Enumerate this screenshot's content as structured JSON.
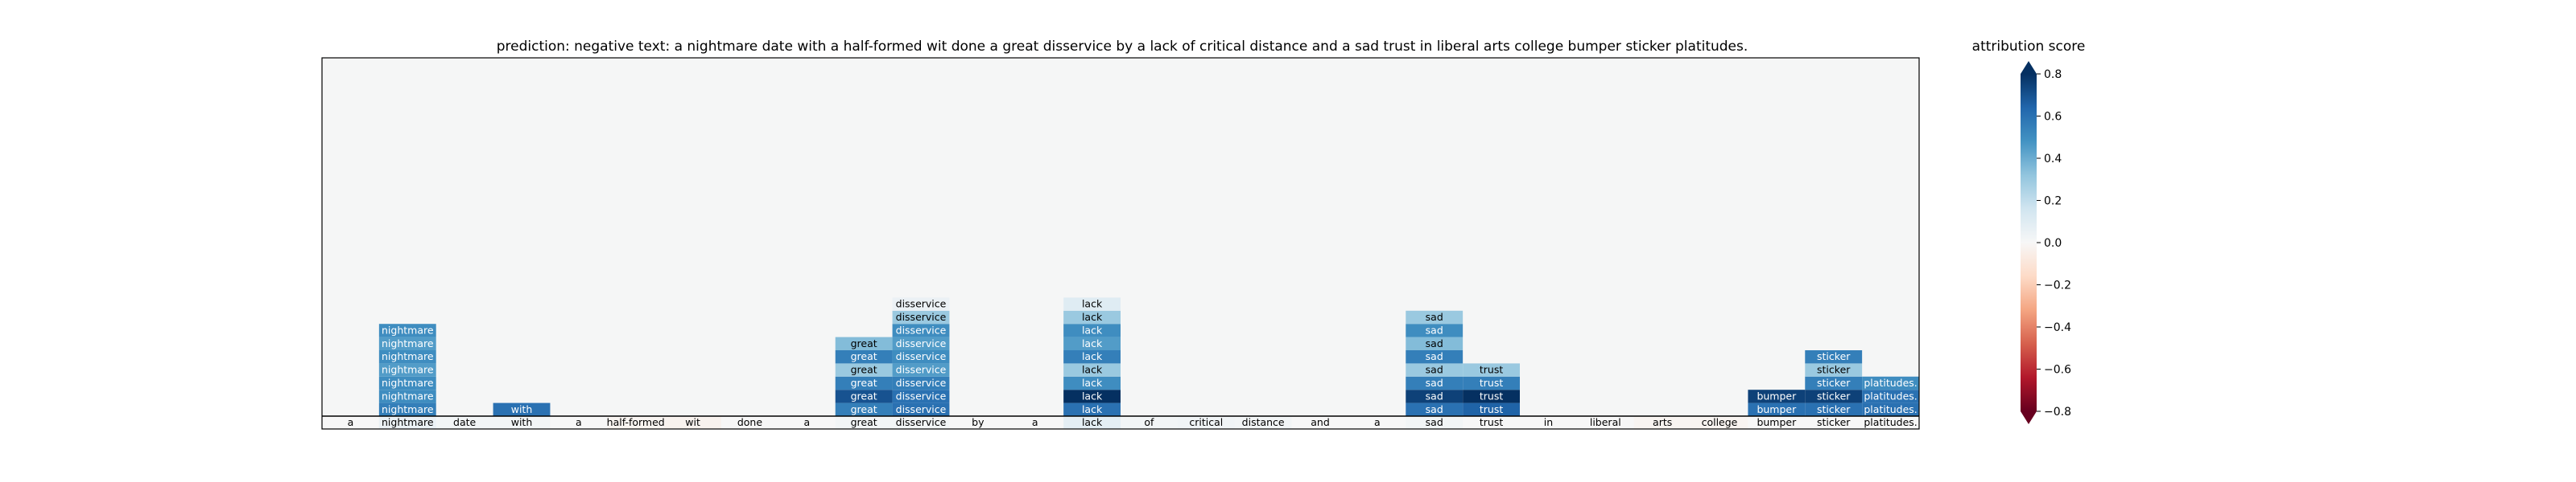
{
  "chart_data": {
    "type": "heatmap",
    "title": "prediction:  negative     text:  a nightmare date with a half-formed wit done a great disservice by a lack of critical distance and a sad trust in liberal arts college bumper sticker platitudes.",
    "tokens": [
      "a",
      "nightmare",
      "date",
      "with",
      "a",
      "half-formed",
      "wit",
      "done",
      "a",
      "great",
      "disservice",
      "by",
      "a",
      "lack",
      "of",
      "critical",
      "distance",
      "and",
      "a",
      "sad",
      "trust",
      "in",
      "liberal",
      "arts",
      "college",
      "bumper",
      "sticker",
      "platitudes."
    ],
    "base_row_scores": [
      0.0,
      0.05,
      0.02,
      0.02,
      0.0,
      -0.02,
      -0.03,
      0.0,
      0.0,
      0.02,
      0.02,
      0.0,
      0.0,
      0.08,
      0.02,
      0.03,
      0.02,
      0.0,
      0.0,
      0.02,
      0.0,
      0.0,
      0.0,
      -0.02,
      -0.02,
      0.0,
      0.0,
      0.0
    ],
    "cells": [
      {
        "layer": 1,
        "token": 1,
        "score": 0.55
      },
      {
        "layer": 1,
        "token": 3,
        "score": 0.6
      },
      {
        "layer": 1,
        "token": 9,
        "score": 0.55
      },
      {
        "layer": 1,
        "token": 10,
        "score": 0.6
      },
      {
        "layer": 1,
        "token": 13,
        "score": 0.6
      },
      {
        "layer": 1,
        "token": 19,
        "score": 0.6
      },
      {
        "layer": 1,
        "token": 20,
        "score": 0.65
      },
      {
        "layer": 1,
        "token": 25,
        "score": 0.6
      },
      {
        "layer": 1,
        "token": 26,
        "score": 0.6
      },
      {
        "layer": 1,
        "token": 27,
        "score": 0.6
      },
      {
        "layer": 2,
        "token": 1,
        "score": 0.5
      },
      {
        "layer": 2,
        "token": 9,
        "score": 0.7
      },
      {
        "layer": 2,
        "token": 10,
        "score": 0.6
      },
      {
        "layer": 2,
        "token": 13,
        "score": 0.85
      },
      {
        "layer": 2,
        "token": 19,
        "score": 0.75
      },
      {
        "layer": 2,
        "token": 20,
        "score": 0.8
      },
      {
        "layer": 2,
        "token": 25,
        "score": 0.75
      },
      {
        "layer": 2,
        "token": 26,
        "score": 0.75
      },
      {
        "layer": 2,
        "token": 27,
        "score": 0.6
      },
      {
        "layer": 3,
        "token": 1,
        "score": 0.5
      },
      {
        "layer": 3,
        "token": 9,
        "score": 0.55
      },
      {
        "layer": 3,
        "token": 10,
        "score": 0.55
      },
      {
        "layer": 3,
        "token": 13,
        "score": 0.5
      },
      {
        "layer": 3,
        "token": 19,
        "score": 0.55
      },
      {
        "layer": 3,
        "token": 20,
        "score": 0.55
      },
      {
        "layer": 3,
        "token": 26,
        "score": 0.55
      },
      {
        "layer": 3,
        "token": 27,
        "score": 0.5
      },
      {
        "layer": 4,
        "token": 1,
        "score": 0.45
      },
      {
        "layer": 4,
        "token": 9,
        "score": 0.3
      },
      {
        "layer": 4,
        "token": 10,
        "score": 0.45
      },
      {
        "layer": 4,
        "token": 13,
        "score": 0.3
      },
      {
        "layer": 4,
        "token": 19,
        "score": 0.3
      },
      {
        "layer": 4,
        "token": 20,
        "score": 0.3
      },
      {
        "layer": 4,
        "token": 26,
        "score": 0.3
      },
      {
        "layer": 5,
        "token": 1,
        "score": 0.5
      },
      {
        "layer": 5,
        "token": 9,
        "score": 0.55
      },
      {
        "layer": 5,
        "token": 10,
        "score": 0.5
      },
      {
        "layer": 5,
        "token": 13,
        "score": 0.55
      },
      {
        "layer": 5,
        "token": 19,
        "score": 0.55
      },
      {
        "layer": 5,
        "token": 26,
        "score": 0.55
      },
      {
        "layer": 6,
        "token": 1,
        "score": 0.45
      },
      {
        "layer": 6,
        "token": 9,
        "score": 0.35
      },
      {
        "layer": 6,
        "token": 10,
        "score": 0.45
      },
      {
        "layer": 6,
        "token": 13,
        "score": 0.45
      },
      {
        "layer": 6,
        "token": 19,
        "score": 0.35
      },
      {
        "layer": 7,
        "token": 1,
        "score": 0.5
      },
      {
        "layer": 7,
        "token": 10,
        "score": 0.5
      },
      {
        "layer": 7,
        "token": 13,
        "score": 0.5
      },
      {
        "layer": 7,
        "token": 19,
        "score": 0.5
      },
      {
        "layer": 8,
        "token": 10,
        "score": 0.3
      },
      {
        "layer": 8,
        "token": 13,
        "score": 0.3
      },
      {
        "layer": 8,
        "token": 19,
        "score": 0.3
      },
      {
        "layer": 9,
        "token": 10,
        "score": 0.05
      },
      {
        "layer": 9,
        "token": 13,
        "score": 0.1
      }
    ],
    "colorbar": {
      "label": "attribution score",
      "vmin": -0.8,
      "vmax": 0.8,
      "ticks": [
        0.8,
        0.6,
        0.4,
        0.2,
        0.0,
        -0.2,
        -0.4,
        -0.6,
        -0.8
      ],
      "tick_labels": [
        "0.8",
        "0.6",
        "0.4",
        "0.2",
        "0.0",
        "−0.2",
        "−0.4",
        "−0.6",
        "−0.8"
      ],
      "colormap": "RdBu",
      "extend": "both"
    },
    "background_color": "#f5f6f6"
  }
}
